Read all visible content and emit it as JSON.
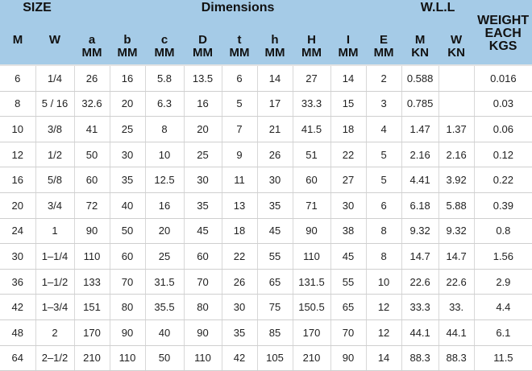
{
  "header": {
    "size_label": "SIZE",
    "dimensions_label": "Dimensions",
    "wll_label": "W.L.L",
    "weight_lines": [
      "WEIGHT",
      "EACH",
      "KGS"
    ],
    "columns": [
      {
        "top": "M",
        "bottom": ""
      },
      {
        "top": "W",
        "bottom": ""
      },
      {
        "top": "a",
        "bottom": "MM"
      },
      {
        "top": "b",
        "bottom": "MM"
      },
      {
        "top": "c",
        "bottom": "MM"
      },
      {
        "top": "D",
        "bottom": "MM"
      },
      {
        "top": "t",
        "bottom": "MM"
      },
      {
        "top": "h",
        "bottom": "MM"
      },
      {
        "top": "H",
        "bottom": "MM"
      },
      {
        "top": "I",
        "bottom": "MM"
      },
      {
        "top": "E",
        "bottom": "MM"
      },
      {
        "top": "M",
        "bottom": "KN"
      },
      {
        "top": "W",
        "bottom": "KN"
      }
    ]
  },
  "rows": [
    [
      "6",
      "1/4",
      "26",
      "16",
      "5.8",
      "13.5",
      "6",
      "14",
      "27",
      "14",
      "2",
      "0.588",
      "",
      "0.016"
    ],
    [
      "8",
      "5 / 16",
      "32.6",
      "20",
      "6.3",
      "16",
      "5",
      "17",
      "33.3",
      "15",
      "3",
      "0.785",
      "",
      "0.03"
    ],
    [
      "10",
      "3/8",
      "41",
      "25",
      "8",
      "20",
      "7",
      "21",
      "41.5",
      "18",
      "4",
      "1.47",
      "1.37",
      "0.06"
    ],
    [
      "12",
      "1/2",
      "50",
      "30",
      "10",
      "25",
      "9",
      "26",
      "51",
      "22",
      "5",
      "2.16",
      "2.16",
      "0.12"
    ],
    [
      "16",
      "5/8",
      "60",
      "35",
      "12.5",
      "30",
      "11",
      "30",
      "60",
      "27",
      "5",
      "4.41",
      "3.92",
      "0.22"
    ],
    [
      "20",
      "3/4",
      "72",
      "40",
      "16",
      "35",
      "13",
      "35",
      "71",
      "30",
      "6",
      "6.18",
      "5.88",
      "0.39"
    ],
    [
      "24",
      "1",
      "90",
      "50",
      "20",
      "45",
      "18",
      "45",
      "90",
      "38",
      "8",
      "9.32",
      "9.32",
      "0.8"
    ],
    [
      "30",
      "1–1/4",
      "110",
      "60",
      "25",
      "60",
      "22",
      "55",
      "110",
      "45",
      "8",
      "14.7",
      "14.7",
      "1.56"
    ],
    [
      "36",
      "1–1/2",
      "133",
      "70",
      "31.5",
      "70",
      "26",
      "65",
      "131.5",
      "55",
      "10",
      "22.6",
      "22.6",
      "2.9"
    ],
    [
      "42",
      "1–3/4",
      "151",
      "80",
      "35.5",
      "80",
      "30",
      "75",
      "150.5",
      "65",
      "12",
      "33.3",
      "33.",
      "4.4"
    ],
    [
      "48",
      "2",
      "170",
      "90",
      "40",
      "90",
      "35",
      "85",
      "170",
      "70",
      "12",
      "44.1",
      "44.1",
      "6.1"
    ],
    [
      "64",
      "2–1/2",
      "210",
      "110",
      "50",
      "110",
      "42",
      "105",
      "210",
      "90",
      "14",
      "88.3",
      "88.3",
      "11.5"
    ]
  ]
}
